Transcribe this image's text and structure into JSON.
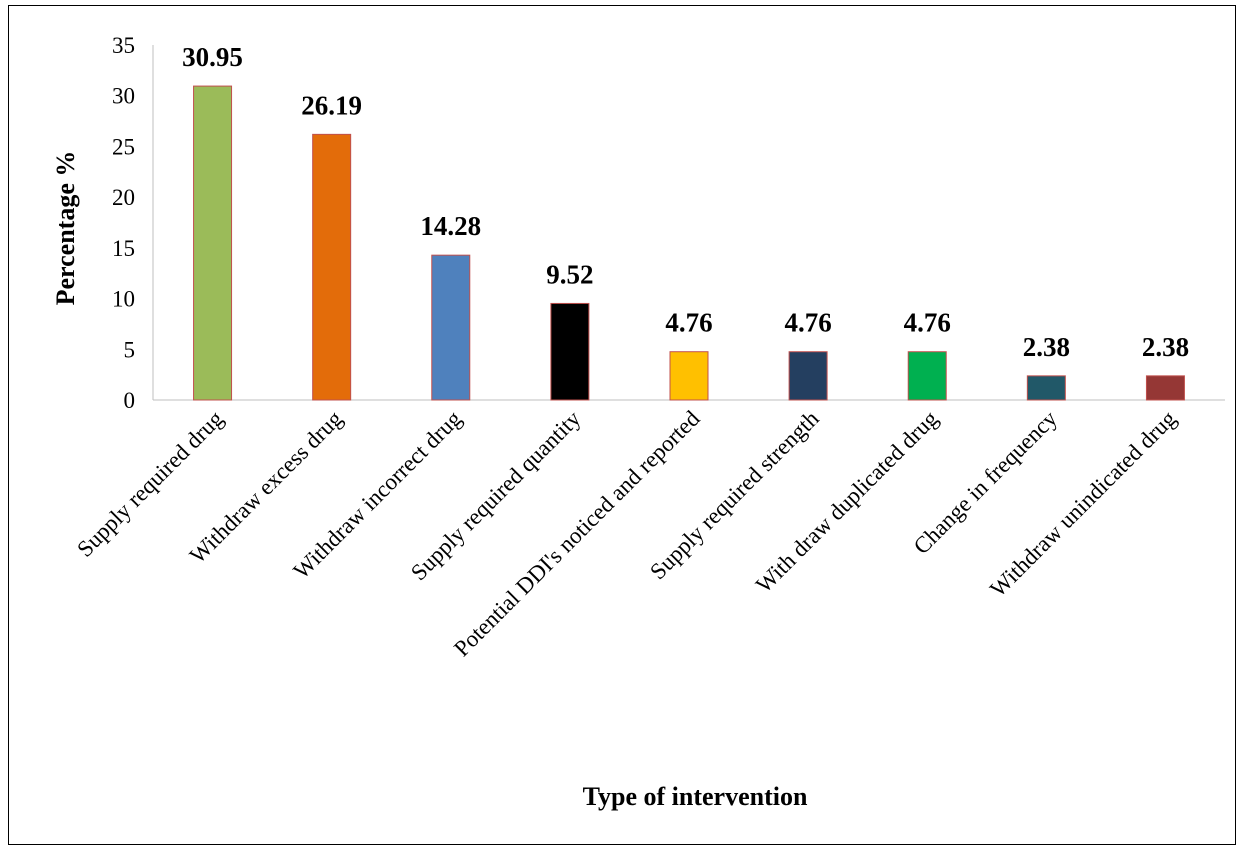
{
  "chart_data": {
    "type": "bar",
    "title": "",
    "xlabel": "Type of intervention",
    "ylabel": "Percentage %",
    "ylim": [
      0,
      35
    ],
    "yticks": [
      0,
      5,
      10,
      15,
      20,
      25,
      30,
      35
    ],
    "grid": false,
    "legend": "none",
    "categories": [
      "Supply required drug",
      "Withdraw excess drug",
      "Withdraw incorrect drug",
      "Supply required quantity",
      "Potential DDI's noticed and reported",
      "Supply required strength",
      "With draw duplicated drug",
      "Change in frequency",
      "Withdraw unindicated drug"
    ],
    "values": [
      30.95,
      26.19,
      14.28,
      9.52,
      4.76,
      4.76,
      4.76,
      2.38,
      2.38
    ],
    "data_labels": [
      "30.95",
      "26.19",
      "14.28",
      "9.52",
      "4.76",
      "4.76",
      "4.76",
      "2.38",
      "2.38"
    ],
    "colors": [
      "#9BBB59",
      "#E36C0A",
      "#4F81BD",
      "#000000",
      "#FFC000",
      "#243F60",
      "#00B050",
      "#215868",
      "#953735"
    ]
  }
}
